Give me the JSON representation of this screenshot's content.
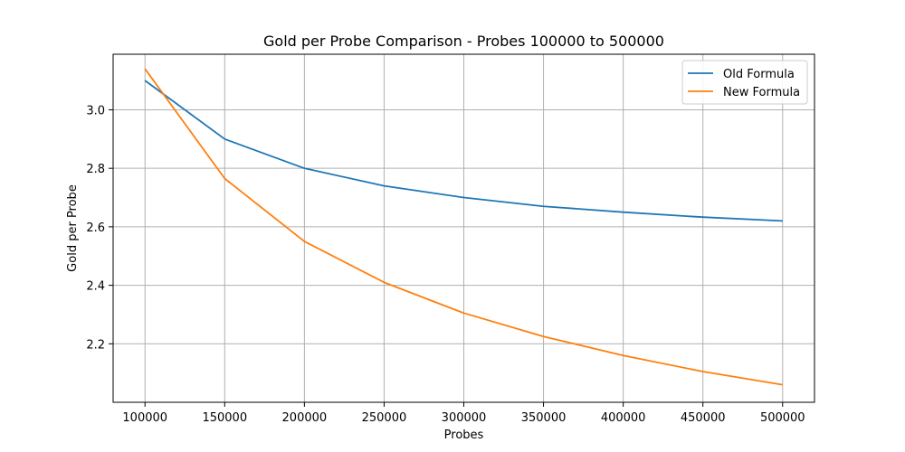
{
  "chart_data": {
    "type": "line",
    "title": "Gold per Probe Comparison - Probes 100000 to 500000",
    "xlabel": "Probes",
    "ylabel": "Gold per Probe",
    "x": [
      100000,
      150000,
      200000,
      250000,
      300000,
      350000,
      400000,
      450000,
      500000
    ],
    "xlim": [
      80000,
      520000
    ],
    "ylim": [
      2.0,
      3.19
    ],
    "xticks": [
      "100000",
      "150000",
      "200000",
      "250000",
      "300000",
      "350000",
      "400000",
      "450000",
      "500000"
    ],
    "yticks": [
      "2.2",
      "2.4",
      "2.6",
      "2.8",
      "3.0"
    ],
    "grid": true,
    "legend_position": "top-right",
    "series": [
      {
        "name": "Old Formula",
        "color": "#1f77b4",
        "values": [
          3.1,
          2.9,
          2.8,
          2.74,
          2.7,
          2.67,
          2.65,
          2.633,
          2.62
        ]
      },
      {
        "name": "New Formula",
        "color": "#ff7f0e",
        "values": [
          3.14,
          2.765,
          2.55,
          2.41,
          2.305,
          2.225,
          2.16,
          2.105,
          2.06
        ]
      }
    ]
  }
}
